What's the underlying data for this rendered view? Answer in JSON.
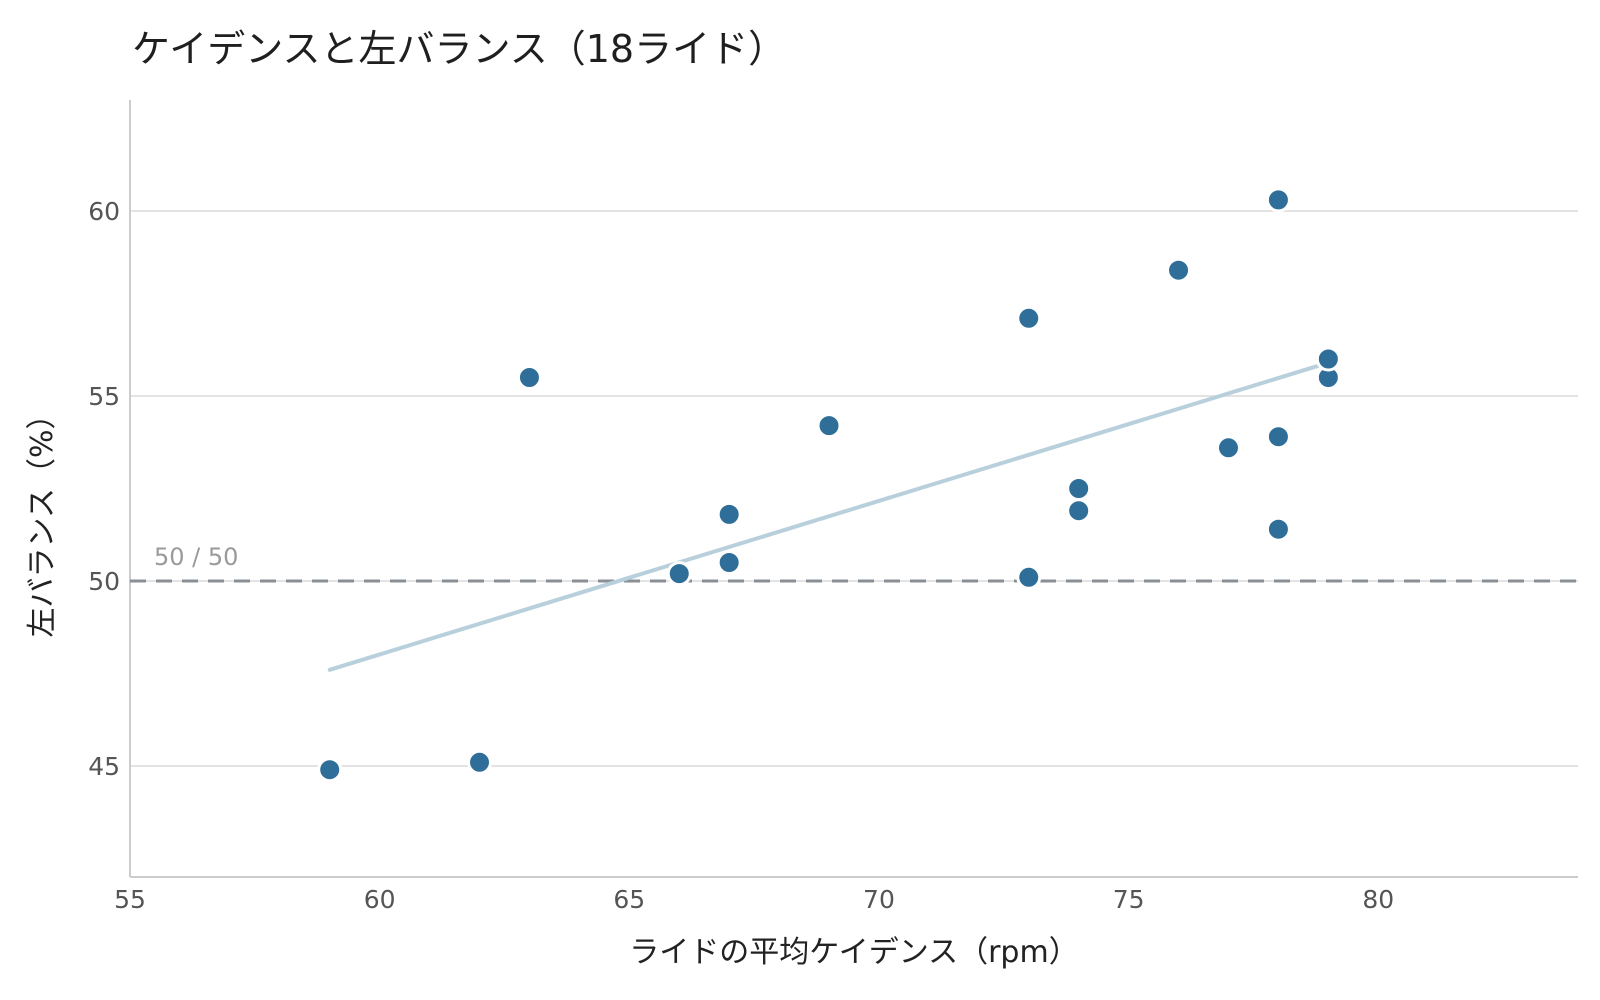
{
  "chart_data": {
    "type": "scatter",
    "title": "ケイデンスと左バランス（18ライド）",
    "xlabel": "ライドの平均ケイデンス（rpm）",
    "ylabel": "左バランス（%）",
    "xlim": [
      55,
      84
    ],
    "ylim": [
      42,
      63
    ],
    "x_ticks": [
      55,
      60,
      65,
      70,
      75,
      80
    ],
    "y_ticks": [
      45,
      50,
      55,
      60
    ],
    "grid": "horizontal",
    "colors": {
      "points": "#2e6e98",
      "trend": "#b8cfdc",
      "reference": "#8a8f96",
      "grid": "#e3e3e3",
      "axis": "#cccccc"
    },
    "points": [
      {
        "x": 59,
        "y": 44.9
      },
      {
        "x": 62,
        "y": 45.1
      },
      {
        "x": 63,
        "y": 55.5
      },
      {
        "x": 66,
        "y": 50.2
      },
      {
        "x": 67,
        "y": 50.5
      },
      {
        "x": 67,
        "y": 51.8
      },
      {
        "x": 69,
        "y": 54.2
      },
      {
        "x": 73,
        "y": 50.1
      },
      {
        "x": 73,
        "y": 57.1
      },
      {
        "x": 74,
        "y": 51.9
      },
      {
        "x": 74,
        "y": 52.5
      },
      {
        "x": 76,
        "y": 58.4
      },
      {
        "x": 77,
        "y": 53.6
      },
      {
        "x": 78,
        "y": 51.4
      },
      {
        "x": 78,
        "y": 53.9
      },
      {
        "x": 78,
        "y": 60.3
      },
      {
        "x": 79,
        "y": 55.5
      },
      {
        "x": 79,
        "y": 56.0
      }
    ],
    "trend_line": {
      "x": [
        59,
        79
      ],
      "y": [
        47.6,
        55.9
      ]
    },
    "reference_line": {
      "y": 50,
      "label": "50 / 50",
      "style": "dashed"
    }
  }
}
